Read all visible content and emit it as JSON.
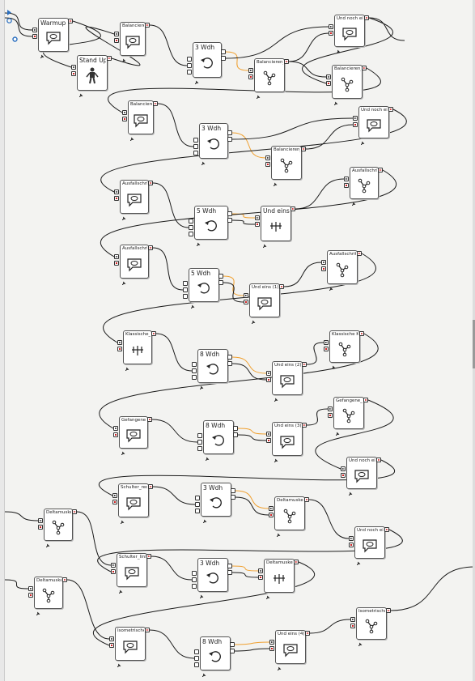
{
  "colors": {
    "wire": "#1a1a1a",
    "loop_wire": "#f0a030",
    "box_border": "#555555",
    "stop_port": "#cc2222"
  },
  "boxes": [
    {
      "id": "b1",
      "label": "Warmup",
      "icon": "speech-bubble-icon",
      "big": true
    },
    {
      "id": "b2",
      "label": "Stand Up",
      "icon": "standing-robot-icon",
      "big": true
    },
    {
      "id": "b3",
      "label": "Balancieren_lir",
      "icon": "speech-bubble-icon"
    },
    {
      "id": "b4",
      "label": "3 Wdh",
      "icon": "loop-arrow-icon",
      "big": true
    },
    {
      "id": "b5",
      "label": "Balancieren_l",
      "icon": "motion-tree-icon"
    },
    {
      "id": "b6",
      "label": "Und noch ein",
      "icon": "speech-bubble-icon"
    },
    {
      "id": "b7",
      "label": "Balancieren_l",
      "icon": "motion-tree-icon"
    },
    {
      "id": "b8",
      "label": "Balancieren_re",
      "icon": "speech-bubble-icon"
    },
    {
      "id": "b9",
      "label": "3 Wdh",
      "icon": "loop-arrow-icon",
      "big": true
    },
    {
      "id": "b10",
      "label": "Und noch ein",
      "icon": "speech-bubble-icon"
    },
    {
      "id": "b11",
      "label": "Balancieren_R",
      "icon": "motion-tree-icon"
    },
    {
      "id": "b12",
      "label": "Ausfallschritt l",
      "icon": "speech-bubble-icon"
    },
    {
      "id": "b13",
      "label": "5 Wdh",
      "icon": "loop-arrow-icon",
      "big": true
    },
    {
      "id": "b14",
      "label": "Und eins",
      "icon": "count-icon",
      "big": true
    },
    {
      "id": "b15",
      "label": "Ausfallschritt",
      "icon": "motion-tree-icon"
    },
    {
      "id": "b16",
      "label": "Ausfallschritt li",
      "icon": "speech-bubble-icon"
    },
    {
      "id": "b17",
      "label": "5 Wdh",
      "icon": "loop-arrow-icon",
      "big": true
    },
    {
      "id": "b18",
      "label": "Und eins (1)",
      "icon": "speech-bubble-icon"
    },
    {
      "id": "b19",
      "label": "Ausfallschritt_l",
      "icon": "motion-tree-icon"
    },
    {
      "id": "b20",
      "label": "Klassische_Kni",
      "icon": "count-icon"
    },
    {
      "id": "b21",
      "label": "8 Wdh",
      "icon": "loop-arrow-icon",
      "big": true
    },
    {
      "id": "b22",
      "label": "Und eins (2)",
      "icon": "speech-bubble-icon"
    },
    {
      "id": "b23",
      "label": "Klassische Kni",
      "icon": "motion-tree-icon"
    },
    {
      "id": "b24",
      "label": "Gefangene K",
      "icon": "speech-bubble-icon"
    },
    {
      "id": "b25",
      "label": "8 Wdh",
      "icon": "loop-arrow-icon",
      "big": true
    },
    {
      "id": "b26",
      "label": "Und eins (3)",
      "icon": "speech-bubble-icon"
    },
    {
      "id": "b27",
      "label": "Gefangene_K",
      "icon": "motion-tree-icon"
    },
    {
      "id": "b28",
      "label": "Und noch ein",
      "icon": "speech-bubble-icon"
    },
    {
      "id": "b29",
      "label": "Schulter_rech",
      "icon": "speech-bubble-icon"
    },
    {
      "id": "b30",
      "label": "3 Wdh",
      "icon": "loop-arrow-icon",
      "big": true
    },
    {
      "id": "b31",
      "label": "Deltamuskel R",
      "icon": "motion-tree-icon"
    },
    {
      "id": "b32",
      "label": "Deltamuskel l",
      "icon": "motion-tree-icon"
    },
    {
      "id": "b33",
      "label": "Und noch ein",
      "icon": "speech-bubble-icon"
    },
    {
      "id": "b34",
      "label": "Schulter_links",
      "icon": "speech-bubble-icon"
    },
    {
      "id": "b35",
      "label": "3 Wdh",
      "icon": "loop-arrow-icon",
      "big": true
    },
    {
      "id": "b36",
      "label": "Deltamuskel_l",
      "icon": "count-icon"
    },
    {
      "id": "b37",
      "label": "Deltamuskel R",
      "icon": "motion-tree-icon"
    },
    {
      "id": "b38",
      "label": "Isometrisches",
      "icon": "speech-bubble-icon"
    },
    {
      "id": "b39",
      "label": "8 Wdh",
      "icon": "loop-arrow-icon",
      "big": true
    },
    {
      "id": "b40",
      "label": "Und eins (4)",
      "icon": "speech-bubble-icon"
    },
    {
      "id": "b41",
      "label": "Isometrisches",
      "icon": "motion-tree-icon"
    }
  ]
}
